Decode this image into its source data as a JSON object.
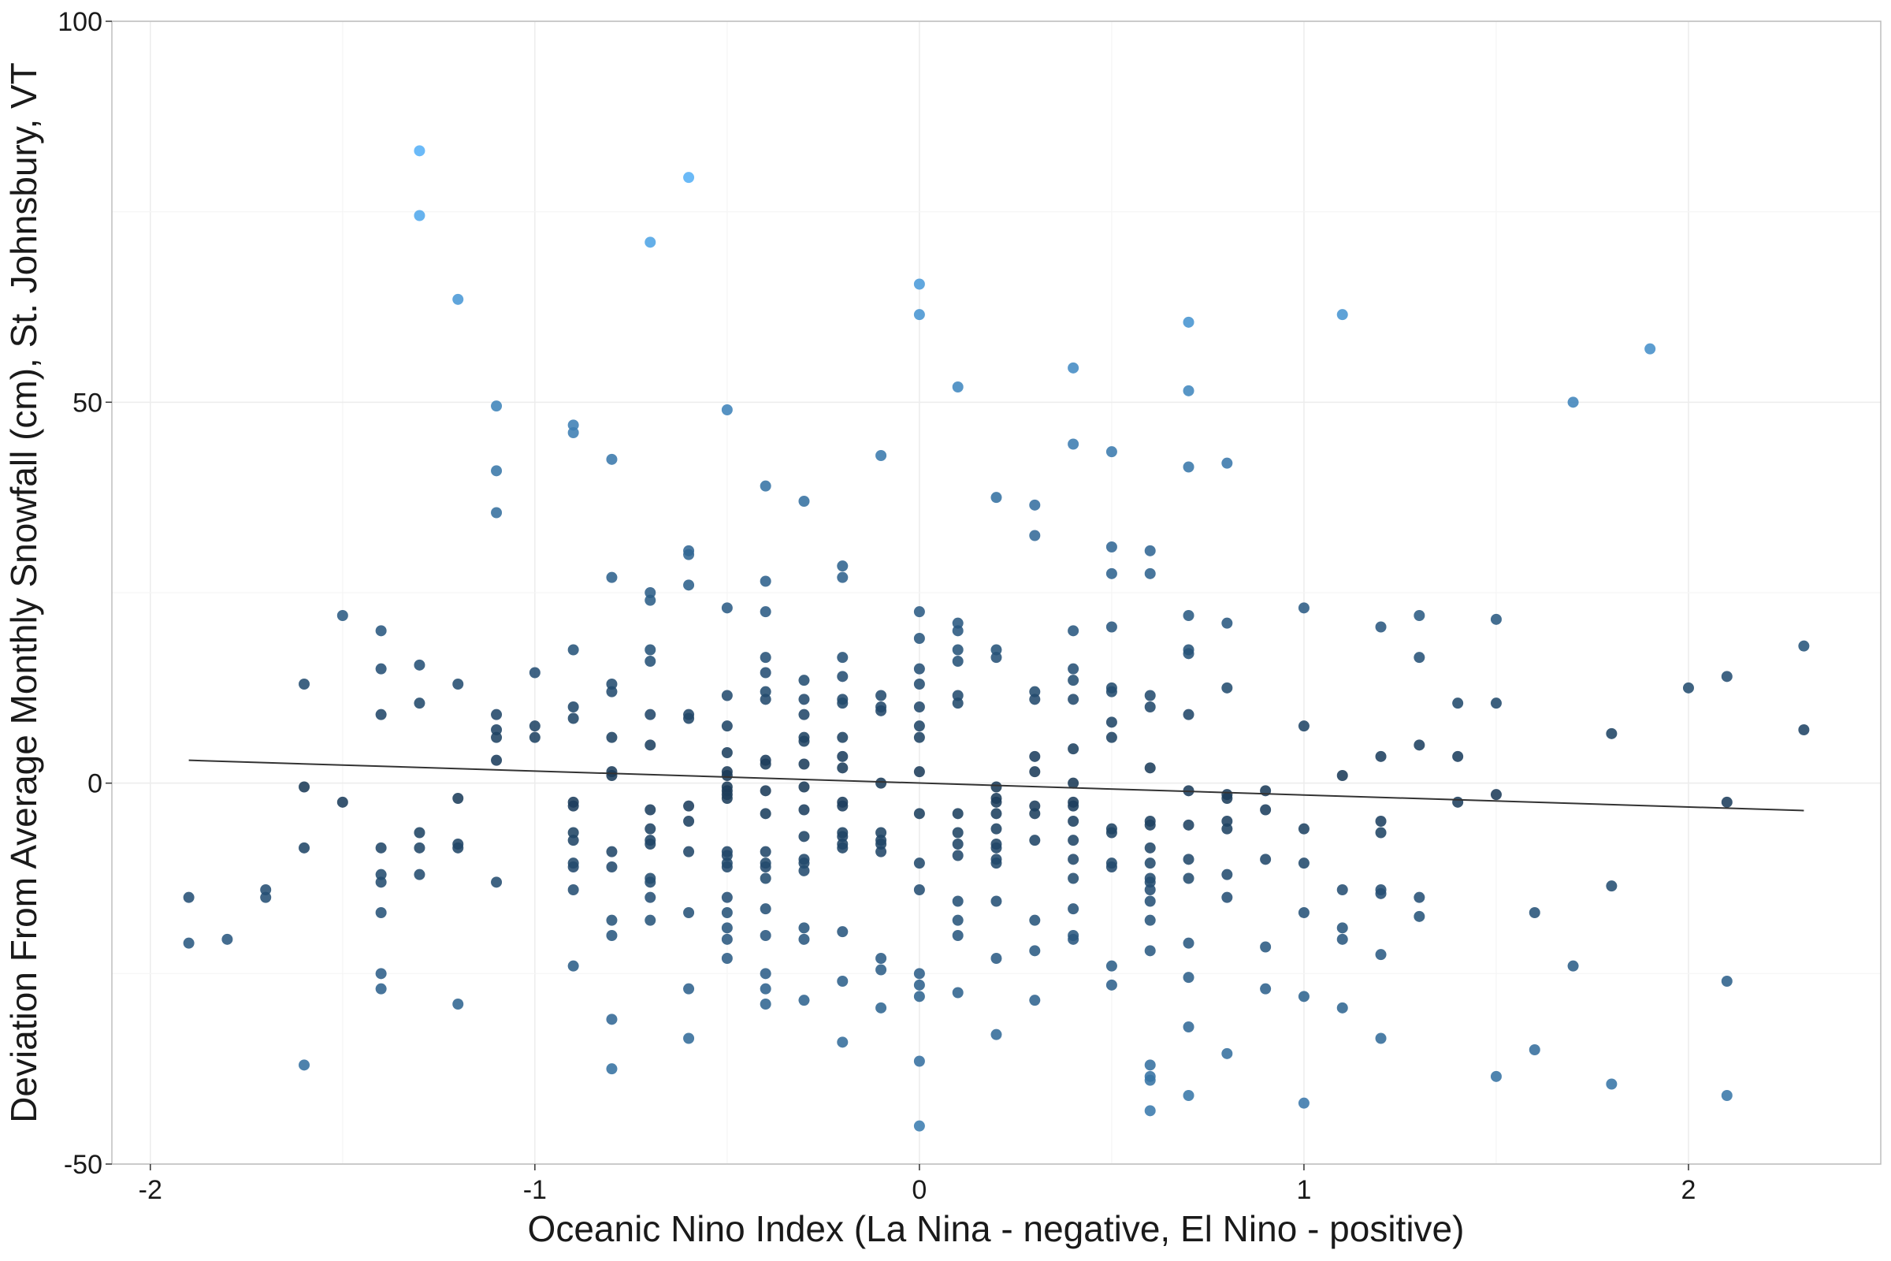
{
  "chart_data": {
    "type": "scatter",
    "xlabel": "Oceanic Nino Index (La Nina - negative, El Nino - positive)",
    "ylabel": "Deviation From Average Monthly Snowfall (cm), St. Johnsbury, VT",
    "xlim": [
      -2.1,
      2.5
    ],
    "ylim": [
      -50,
      100
    ],
    "x_ticks": [
      -2,
      -1,
      0,
      1,
      2
    ],
    "x_tick_labels": [
      "-2",
      "-1",
      "0",
      "1",
      "2"
    ],
    "y_ticks": [
      -50,
      0,
      50,
      100
    ],
    "y_tick_labels": [
      "-50",
      "0",
      "50",
      "100"
    ],
    "grid": true,
    "legend": "none",
    "color_scale": {
      "low": "#132b43",
      "high": "#56b1f7",
      "low_value": -10,
      "high_value": 80
    },
    "trend_line": {
      "x": [
        -1.9,
        2.3
      ],
      "y": [
        3.0,
        -3.6
      ]
    },
    "points": [
      [
        -1.9,
        -15
      ],
      [
        -1.9,
        -21
      ],
      [
        -1.8,
        -20.5
      ],
      [
        -1.7,
        -14
      ],
      [
        -1.7,
        -15
      ],
      [
        -1.6,
        13
      ],
      [
        -1.6,
        -0.5
      ],
      [
        -1.6,
        -8.5
      ],
      [
        -1.6,
        -37
      ],
      [
        -1.5,
        22
      ],
      [
        -1.5,
        -2.5
      ],
      [
        -1.4,
        20
      ],
      [
        -1.4,
        15
      ],
      [
        -1.4,
        9
      ],
      [
        -1.4,
        -8.5
      ],
      [
        -1.4,
        -12
      ],
      [
        -1.4,
        -13
      ],
      [
        -1.4,
        -17
      ],
      [
        -1.4,
        -25
      ],
      [
        -1.4,
        -27
      ],
      [
        -1.3,
        83
      ],
      [
        -1.3,
        74.5
      ],
      [
        -1.3,
        15.5
      ],
      [
        -1.3,
        10.5
      ],
      [
        -1.3,
        -6.5
      ],
      [
        -1.3,
        -8.5
      ],
      [
        -1.3,
        -12
      ],
      [
        -1.2,
        63.5
      ],
      [
        -1.2,
        13
      ],
      [
        -1.2,
        -2
      ],
      [
        -1.2,
        -8
      ],
      [
        -1.2,
        -8.5
      ],
      [
        -1.2,
        -29
      ],
      [
        -1.1,
        49.5
      ],
      [
        -1.1,
        41
      ],
      [
        -1.1,
        35.5
      ],
      [
        -1.1,
        9
      ],
      [
        -1.1,
        7
      ],
      [
        -1.1,
        6
      ],
      [
        -1.1,
        3
      ],
      [
        -1.1,
        -13
      ],
      [
        -1.0,
        14.5
      ],
      [
        -1.0,
        7.5
      ],
      [
        -1.0,
        6
      ],
      [
        -0.9,
        47
      ],
      [
        -0.9,
        46
      ],
      [
        -0.9,
        17.5
      ],
      [
        -0.9,
        10
      ],
      [
        -0.9,
        8.5
      ],
      [
        -0.9,
        -2.5
      ],
      [
        -0.9,
        -3
      ],
      [
        -0.9,
        -6.5
      ],
      [
        -0.9,
        -7.5
      ],
      [
        -0.9,
        -10.5
      ],
      [
        -0.9,
        -11
      ],
      [
        -0.9,
        -14
      ],
      [
        -0.9,
        -24
      ],
      [
        -0.8,
        42.5
      ],
      [
        -0.8,
        27
      ],
      [
        -0.8,
        13
      ],
      [
        -0.8,
        12
      ],
      [
        -0.8,
        6
      ],
      [
        -0.8,
        1.5
      ],
      [
        -0.8,
        1
      ],
      [
        -0.8,
        -9
      ],
      [
        -0.8,
        -11
      ],
      [
        -0.8,
        -18
      ],
      [
        -0.8,
        -20
      ],
      [
        -0.8,
        -31
      ],
      [
        -0.8,
        -37.5
      ],
      [
        -0.7,
        71
      ],
      [
        -0.7,
        25
      ],
      [
        -0.7,
        24
      ],
      [
        -0.7,
        17.5
      ],
      [
        -0.7,
        16
      ],
      [
        -0.7,
        9
      ],
      [
        -0.7,
        5
      ],
      [
        -0.7,
        -3.5
      ],
      [
        -0.7,
        -6
      ],
      [
        -0.7,
        -7.5
      ],
      [
        -0.7,
        -8
      ],
      [
        -0.7,
        -12.5
      ],
      [
        -0.7,
        -13
      ],
      [
        -0.7,
        -15
      ],
      [
        -0.7,
        -18
      ],
      [
        -0.6,
        79.5
      ],
      [
        -0.6,
        30.5
      ],
      [
        -0.6,
        30
      ],
      [
        -0.6,
        26
      ],
      [
        -0.6,
        9
      ],
      [
        -0.6,
        8.5
      ],
      [
        -0.6,
        -3
      ],
      [
        -0.6,
        -5
      ],
      [
        -0.6,
        -9
      ],
      [
        -0.6,
        -17
      ],
      [
        -0.6,
        -27
      ],
      [
        -0.6,
        -33.5
      ],
      [
        -0.5,
        49
      ],
      [
        -0.5,
        23
      ],
      [
        -0.5,
        11.5
      ],
      [
        -0.5,
        7.5
      ],
      [
        -0.5,
        4
      ],
      [
        -0.5,
        1.5
      ],
      [
        -0.5,
        1
      ],
      [
        -0.5,
        -0.5
      ],
      [
        -0.5,
        -1
      ],
      [
        -0.5,
        -1.5
      ],
      [
        -0.5,
        -2
      ],
      [
        -0.5,
        -9
      ],
      [
        -0.5,
        -9.5
      ],
      [
        -0.5,
        -10.5
      ],
      [
        -0.5,
        -11
      ],
      [
        -0.5,
        -15
      ],
      [
        -0.5,
        -17
      ],
      [
        -0.5,
        -19
      ],
      [
        -0.5,
        -20.5
      ],
      [
        -0.5,
        -23
      ],
      [
        -0.4,
        39
      ],
      [
        -0.4,
        26.5
      ],
      [
        -0.4,
        22.5
      ],
      [
        -0.4,
        16.5
      ],
      [
        -0.4,
        14.5
      ],
      [
        -0.4,
        12
      ],
      [
        -0.4,
        11
      ],
      [
        -0.4,
        3
      ],
      [
        -0.4,
        2.5
      ],
      [
        -0.4,
        -1
      ],
      [
        -0.4,
        -4
      ],
      [
        -0.4,
        -9
      ],
      [
        -0.4,
        -10.5
      ],
      [
        -0.4,
        -11
      ],
      [
        -0.4,
        -12.5
      ],
      [
        -0.4,
        -16.5
      ],
      [
        -0.4,
        -20
      ],
      [
        -0.4,
        -25
      ],
      [
        -0.4,
        -27
      ],
      [
        -0.4,
        -29
      ],
      [
        -0.3,
        37
      ],
      [
        -0.3,
        13.5
      ],
      [
        -0.3,
        11
      ],
      [
        -0.3,
        9
      ],
      [
        -0.3,
        6
      ],
      [
        -0.3,
        5.5
      ],
      [
        -0.3,
        2.5
      ],
      [
        -0.3,
        -0.5
      ],
      [
        -0.3,
        -3.5
      ],
      [
        -0.3,
        -7
      ],
      [
        -0.3,
        -10
      ],
      [
        -0.3,
        -10.5
      ],
      [
        -0.3,
        -11.5
      ],
      [
        -0.3,
        -19
      ],
      [
        -0.3,
        -20.5
      ],
      [
        -0.3,
        -28.5
      ],
      [
        -0.2,
        28.5
      ],
      [
        -0.2,
        27
      ],
      [
        -0.2,
        16.5
      ],
      [
        -0.2,
        14
      ],
      [
        -0.2,
        11
      ],
      [
        -0.2,
        10.5
      ],
      [
        -0.2,
        6
      ],
      [
        -0.2,
        3.5
      ],
      [
        -0.2,
        2
      ],
      [
        -0.2,
        -2.5
      ],
      [
        -0.2,
        -3
      ],
      [
        -0.2,
        -6.5
      ],
      [
        -0.2,
        -7
      ],
      [
        -0.2,
        -8
      ],
      [
        -0.2,
        -8.5
      ],
      [
        -0.2,
        -19.5
      ],
      [
        -0.2,
        -26
      ],
      [
        -0.2,
        -34
      ],
      [
        -0.1,
        43
      ],
      [
        -0.1,
        11.5
      ],
      [
        -0.1,
        10
      ],
      [
        -0.1,
        9.5
      ],
      [
        -0.1,
        0
      ],
      [
        -0.1,
        -6.5
      ],
      [
        -0.1,
        -7.5
      ],
      [
        -0.1,
        -8
      ],
      [
        -0.1,
        -9
      ],
      [
        -0.1,
        -23
      ],
      [
        -0.1,
        -24.5
      ],
      [
        -0.1,
        -29.5
      ],
      [
        0.0,
        65.5
      ],
      [
        0.0,
        61.5
      ],
      [
        0.0,
        22.5
      ],
      [
        0.0,
        19
      ],
      [
        0.0,
        15
      ],
      [
        0.0,
        13
      ],
      [
        0.0,
        10
      ],
      [
        0.0,
        7.5
      ],
      [
        0.0,
        6
      ],
      [
        0.0,
        1.5
      ],
      [
        0.0,
        -4
      ],
      [
        0.0,
        -10.5
      ],
      [
        0.0,
        -14
      ],
      [
        0.0,
        -25
      ],
      [
        0.0,
        -26.5
      ],
      [
        0.0,
        -28
      ],
      [
        0.0,
        -36.5
      ],
      [
        0.0,
        -45
      ],
      [
        0.1,
        52
      ],
      [
        0.1,
        21
      ],
      [
        0.1,
        20
      ],
      [
        0.1,
        17.5
      ],
      [
        0.1,
        16
      ],
      [
        0.1,
        11.5
      ],
      [
        0.1,
        10.5
      ],
      [
        0.1,
        -4
      ],
      [
        0.1,
        -6.5
      ],
      [
        0.1,
        -8
      ],
      [
        0.1,
        -9.5
      ],
      [
        0.1,
        -15.5
      ],
      [
        0.1,
        -18
      ],
      [
        0.1,
        -20
      ],
      [
        0.1,
        -27.5
      ],
      [
        0.2,
        37.5
      ],
      [
        0.2,
        17.5
      ],
      [
        0.2,
        16.5
      ],
      [
        0.2,
        -0.5
      ],
      [
        0.2,
        -2
      ],
      [
        0.2,
        -2.5
      ],
      [
        0.2,
        -4
      ],
      [
        0.2,
        -6
      ],
      [
        0.2,
        -8
      ],
      [
        0.2,
        -8.5
      ],
      [
        0.2,
        -10
      ],
      [
        0.2,
        -10.5
      ],
      [
        0.2,
        -15.5
      ],
      [
        0.2,
        -23
      ],
      [
        0.2,
        -33
      ],
      [
        0.3,
        36.5
      ],
      [
        0.3,
        32.5
      ],
      [
        0.3,
        12
      ],
      [
        0.3,
        11
      ],
      [
        0.3,
        3.5
      ],
      [
        0.3,
        1.5
      ],
      [
        0.3,
        -3
      ],
      [
        0.3,
        -4
      ],
      [
        0.3,
        -7.5
      ],
      [
        0.3,
        -18
      ],
      [
        0.3,
        -22
      ],
      [
        0.3,
        -28.5
      ],
      [
        0.4,
        54.5
      ],
      [
        0.4,
        44.5
      ],
      [
        0.4,
        20
      ],
      [
        0.4,
        15
      ],
      [
        0.4,
        13.5
      ],
      [
        0.4,
        11
      ],
      [
        0.4,
        4.5
      ],
      [
        0.4,
        0
      ],
      [
        0.4,
        -2.5
      ],
      [
        0.4,
        -3
      ],
      [
        0.4,
        -5
      ],
      [
        0.4,
        -7.5
      ],
      [
        0.4,
        -10
      ],
      [
        0.4,
        -12.5
      ],
      [
        0.4,
        -16.5
      ],
      [
        0.4,
        -20
      ],
      [
        0.4,
        -20.5
      ],
      [
        0.5,
        43.5
      ],
      [
        0.5,
        31
      ],
      [
        0.5,
        27.5
      ],
      [
        0.5,
        20.5
      ],
      [
        0.5,
        12.5
      ],
      [
        0.5,
        12
      ],
      [
        0.5,
        8
      ],
      [
        0.5,
        6
      ],
      [
        0.5,
        -6
      ],
      [
        0.5,
        -6.5
      ],
      [
        0.5,
        -10.5
      ],
      [
        0.5,
        -11
      ],
      [
        0.5,
        -24
      ],
      [
        0.5,
        -26.5
      ],
      [
        0.6,
        30.5
      ],
      [
        0.6,
        27.5
      ],
      [
        0.6,
        11.5
      ],
      [
        0.6,
        10
      ],
      [
        0.6,
        2
      ],
      [
        0.6,
        -5
      ],
      [
        0.6,
        -5.5
      ],
      [
        0.6,
        -8.5
      ],
      [
        0.6,
        -10.5
      ],
      [
        0.6,
        -12.5
      ],
      [
        0.6,
        -13
      ],
      [
        0.6,
        -14
      ],
      [
        0.6,
        -15.5
      ],
      [
        0.6,
        -18
      ],
      [
        0.6,
        -22
      ],
      [
        0.6,
        -37
      ],
      [
        0.6,
        -38.5
      ],
      [
        0.6,
        -39
      ],
      [
        0.6,
        -43
      ],
      [
        0.7,
        60.5
      ],
      [
        0.7,
        51.5
      ],
      [
        0.7,
        41.5
      ],
      [
        0.7,
        22
      ],
      [
        0.7,
        17.5
      ],
      [
        0.7,
        17
      ],
      [
        0.7,
        9
      ],
      [
        0.7,
        -1
      ],
      [
        0.7,
        -5.5
      ],
      [
        0.7,
        -10
      ],
      [
        0.7,
        -12.5
      ],
      [
        0.7,
        -21
      ],
      [
        0.7,
        -25.5
      ],
      [
        0.7,
        -32
      ],
      [
        0.7,
        -41
      ],
      [
        0.8,
        42
      ],
      [
        0.8,
        21
      ],
      [
        0.8,
        12.5
      ],
      [
        0.8,
        -1.5
      ],
      [
        0.8,
        -2
      ],
      [
        0.8,
        -5
      ],
      [
        0.8,
        -6
      ],
      [
        0.8,
        -12
      ],
      [
        0.8,
        -15
      ],
      [
        0.8,
        -35.5
      ],
      [
        0.9,
        -1
      ],
      [
        0.9,
        -3.5
      ],
      [
        0.9,
        -10
      ],
      [
        0.9,
        -21.5
      ],
      [
        0.9,
        -27
      ],
      [
        1.0,
        23
      ],
      [
        1.0,
        7.5
      ],
      [
        1.0,
        -6
      ],
      [
        1.0,
        -10.5
      ],
      [
        1.0,
        -17
      ],
      [
        1.0,
        -28
      ],
      [
        1.0,
        -42
      ],
      [
        1.1,
        61.5
      ],
      [
        1.1,
        1
      ],
      [
        1.1,
        -14
      ],
      [
        1.1,
        -19
      ],
      [
        1.1,
        -20.5
      ],
      [
        1.1,
        -29.5
      ],
      [
        1.2,
        20.5
      ],
      [
        1.2,
        3.5
      ],
      [
        1.2,
        -5
      ],
      [
        1.2,
        -6.5
      ],
      [
        1.2,
        -14
      ],
      [
        1.2,
        -14.5
      ],
      [
        1.2,
        -22.5
      ],
      [
        1.2,
        -33.5
      ],
      [
        1.3,
        22
      ],
      [
        1.3,
        16.5
      ],
      [
        1.3,
        5
      ],
      [
        1.3,
        -15
      ],
      [
        1.3,
        -17.5
      ],
      [
        1.4,
        10.5
      ],
      [
        1.4,
        3.5
      ],
      [
        1.4,
        -2.5
      ],
      [
        1.5,
        21.5
      ],
      [
        1.5,
        10.5
      ],
      [
        1.5,
        -1.5
      ],
      [
        1.5,
        -38.5
      ],
      [
        1.6,
        -17
      ],
      [
        1.6,
        -35
      ],
      [
        1.7,
        50
      ],
      [
        1.7,
        -24
      ],
      [
        1.8,
        6.5
      ],
      [
        1.8,
        -13.5
      ],
      [
        1.8,
        -39.5
      ],
      [
        1.9,
        57
      ],
      [
        2.0,
        12.5
      ],
      [
        2.1,
        14
      ],
      [
        2.1,
        -2.5
      ],
      [
        2.1,
        -26
      ],
      [
        2.1,
        -41
      ],
      [
        2.3,
        18
      ],
      [
        2.3,
        7
      ]
    ]
  }
}
